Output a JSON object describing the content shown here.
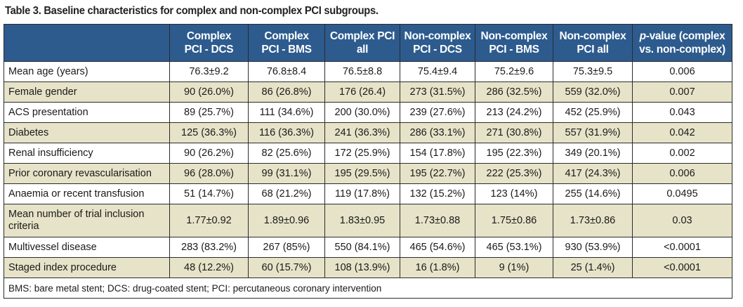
{
  "caption": "Table 3. Baseline characteristics for complex and non-complex PCI subgroups.",
  "header": {
    "columns": [
      {
        "line1": "Complex",
        "line2": "PCI - DCS"
      },
      {
        "line1": "Complex",
        "line2": "PCI - BMS"
      },
      {
        "line1": "Complex PCI",
        "line2": "all"
      },
      {
        "line1": "Non-complex",
        "line2": "PCI - DCS"
      },
      {
        "line1": "Non-complex",
        "line2": "PCI - BMS"
      },
      {
        "line1": "Non-complex",
        "line2": "PCI all"
      },
      {
        "line1_italic": "p",
        "line1_rest": "-value (complex",
        "line2": "vs. non-complex)"
      }
    ]
  },
  "rows": [
    {
      "label": "Mean age (years)",
      "values": [
        "76.3±9.2",
        "76.8±8.4",
        "76.5±8.8",
        "75.4±9.4",
        "75.2±9.6",
        "75.3±9.5",
        "0.006"
      ]
    },
    {
      "label": "Female gender",
      "values": [
        "90 (26.0%)",
        "86 (26.8%)",
        "176 (26.4)",
        "273 (31.5%)",
        "286 (32.5%)",
        "559 (32.0%)",
        "0.007"
      ]
    },
    {
      "label": "ACS presentation",
      "values": [
        "89 (25.7%)",
        "111 (34.6%)",
        "200 (30.0%)",
        "239 (27.6%)",
        "213 (24.2%)",
        "452 (25.9%)",
        "0.043"
      ]
    },
    {
      "label": "Diabetes",
      "values": [
        "125 (36.3%)",
        "116 (36.3%)",
        "241 (36.3%)",
        "286 (33.1%)",
        "271 (30.8%)",
        "557 (31.9%)",
        "0.042"
      ]
    },
    {
      "label": "Renal insufficiency",
      "values": [
        "90 (26.2%)",
        "82 (25.6%)",
        "172 (25.9%)",
        "154 (17.8%)",
        "195 (22.3%)",
        "349 (20.1%)",
        "0.002"
      ]
    },
    {
      "label": "Prior coronary revascularisation",
      "values": [
        "96 (28.0%)",
        "99 (31.1%)",
        "195 (29.5%)",
        "195 (22.7%)",
        "222 (25.3%)",
        "417 (24.3%)",
        "0.006"
      ]
    },
    {
      "label": "Anaemia or recent transfusion",
      "values": [
        "51 (14.7%)",
        "68 (21.2%)",
        "119 (17.8%)",
        "132 (15.2%)",
        "123 (14%)",
        "255 (14.6%)",
        "0.0495"
      ]
    },
    {
      "label": "Mean number of trial inclusion criteria",
      "values": [
        "1.77±0.92",
        "1.89±0.96",
        "1.83±0.95",
        "1.73±0.88",
        "1.75±0.86",
        "1.73±0.86",
        "0.03"
      ]
    },
    {
      "label": "Multivessel disease",
      "values": [
        "283 (83.2%)",
        "267 (85%)",
        "550 (84.1%)",
        "465 (54.6%)",
        "465 (53.1%)",
        "930 (53.9%)",
        "<0.0001"
      ]
    },
    {
      "label": "Staged index procedure",
      "values": [
        "48 (12.2%)",
        "60 (15.7%)",
        "108 (13.9%)",
        "16 (1.8%)",
        "9 (1%)",
        "25 (1.4%)",
        "<0.0001"
      ]
    }
  ],
  "footnote": "BMS: bare metal stent; DCS: drug-coated stent; PCI: percutaneous coronary intervention",
  "colors": {
    "header_bg": "#2d5b8e",
    "header_text": "#ffffff",
    "shaded_row": "#e6e3c8",
    "border": "#2b2b2b"
  }
}
